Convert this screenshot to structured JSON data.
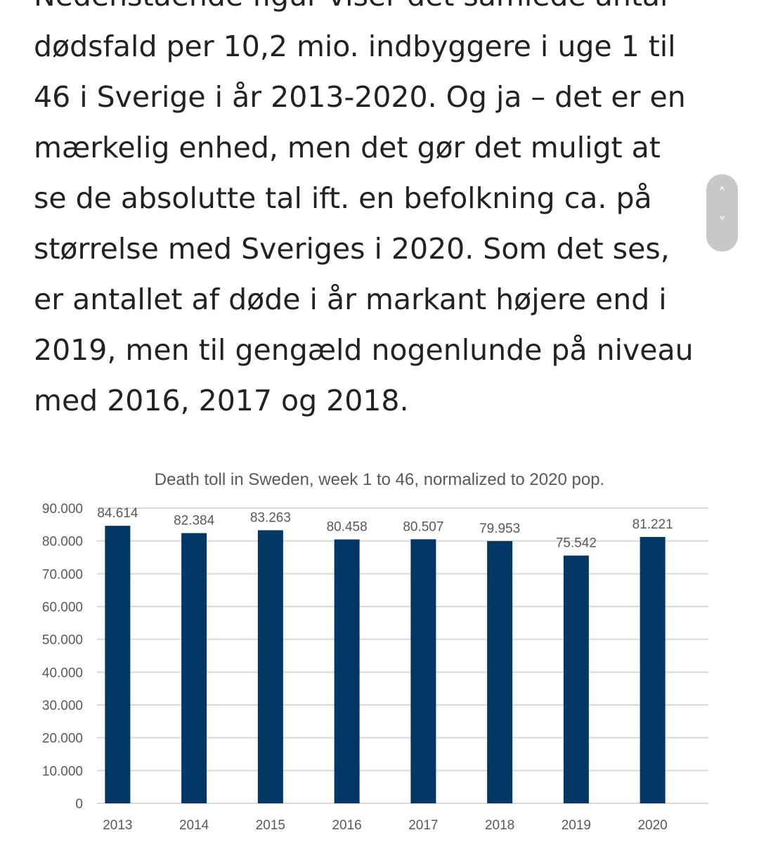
{
  "article": {
    "lines": [
      "Nedenstående figur viser det samlede antal",
      "dødsfald per 10,2 mio. indbyggere i uge 1 til",
      "46 i Sverige i år 2013-2020. Og ja – det er en",
      "mærkelig enhed, men det gør det muligt at",
      "se de absolutte tal ift. en befolkning ca. på",
      "størrelse med Sveriges i 2020. Som det ses,",
      "er antallet af døde i år markant højere end i",
      "2019, men til gengæld nogenlunde på niveau",
      "med 2016, 2017 og 2018."
    ]
  },
  "scroll_control": {
    "up_icon": "chevron-up-icon",
    "down_icon": "chevron-down-icon",
    "up": "˄",
    "down": "˅"
  },
  "chart_data": {
    "type": "bar",
    "title": "Death toll in Sweden, week 1 to 46, normalized to 2020 pop.",
    "categories": [
      "2013",
      "2014",
      "2015",
      "2016",
      "2017",
      "2018",
      "2019",
      "2020"
    ],
    "values": [
      84614,
      82384,
      83263,
      80458,
      80507,
      79953,
      75542,
      81221
    ],
    "data_labels": [
      "84.614",
      "82.384",
      "83.263",
      "80.458",
      "80.507",
      "79.953",
      "75.542",
      "81.221"
    ],
    "ylim": [
      0,
      90000
    ],
    "yticks": [
      "0",
      "10.000",
      "20.000",
      "30.000",
      "40.000",
      "50.000",
      "60.000",
      "70.000",
      "80.000",
      "90.000"
    ],
    "grid": true,
    "bar_color": "#003764"
  }
}
